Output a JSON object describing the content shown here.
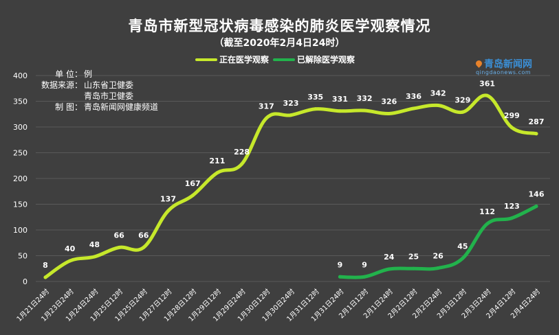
{
  "chart_data": {
    "type": "line",
    "title": "青岛市新型冠状病毒感染的肺炎医学观察情况",
    "subtitle": "（截至2020年2月4日24时）",
    "categories": [
      "1月21日24时",
      "1月23日24时",
      "1月24日24时",
      "1月25日12时",
      "1月25日24时",
      "1月27日12时",
      "1月28日12时",
      "1月29日12时",
      "1月29日24时",
      "1月30日12时",
      "1月30日24时",
      "1月31日12时",
      "1月31日24时",
      "2月1日12时",
      "2月1日24时",
      "2月2日12时",
      "2月2日24时",
      "2月3日12时",
      "2月3日24时",
      "2月4日12时",
      "2月4日24时"
    ],
    "series": [
      {
        "name": "正在医学观察",
        "color": "#c6e82b",
        "values": [
          8,
          40,
          48,
          66,
          66,
          137,
          167,
          211,
          228,
          317,
          323,
          335,
          331,
          332,
          326,
          336,
          342,
          329,
          361,
          299,
          287
        ]
      },
      {
        "name": "已解除医学观察",
        "color": "#22b24c",
        "values": [
          null,
          null,
          null,
          null,
          null,
          null,
          null,
          null,
          null,
          null,
          null,
          null,
          9,
          9,
          24,
          25,
          26,
          45,
          112,
          123,
          146
        ]
      }
    ],
    "ylim": [
      0,
      400
    ],
    "yticks": [
      0,
      50,
      100,
      150,
      200,
      250,
      300,
      350,
      400
    ],
    "legend_position": "top-center",
    "grid": true
  },
  "info": [
    {
      "key": "单 位：",
      "value": "例"
    },
    {
      "key": "数据来源：",
      "value": "山东省卫健委"
    },
    {
      "key": "",
      "value": "青岛市卫健委"
    },
    {
      "key": "制 图：",
      "value": "青岛新闻网健康频道"
    }
  ],
  "logo": {
    "text": "青岛新闻网",
    "sub": "qingdaonews.com"
  }
}
